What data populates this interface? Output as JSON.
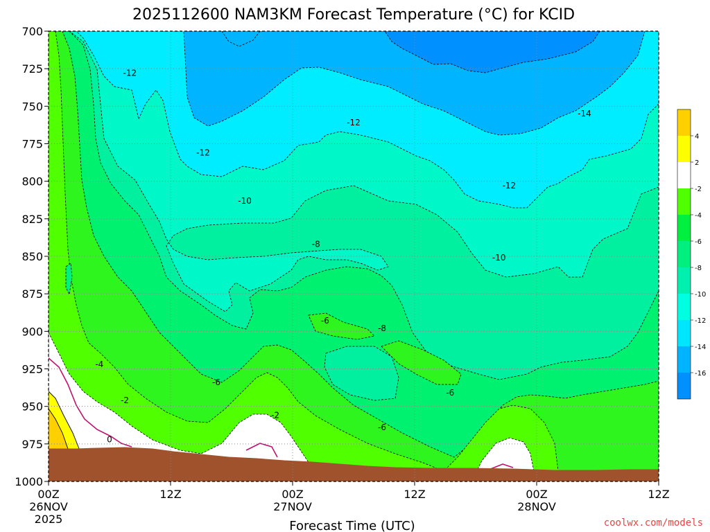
{
  "chart_data": {
    "type": "contour",
    "title": "2025112600 NAM3KM Forecast Temperature (°C) for KCID",
    "xlabel": "Forecast Time (UTC)",
    "credit": "coolwx.com/models",
    "x_ticks": [
      {
        "label": "00Z",
        "sub": "26NOV",
        "sub2": "2025",
        "hour": 0
      },
      {
        "label": "12Z",
        "sub": "",
        "sub2": "",
        "hour": 12
      },
      {
        "label": "00Z",
        "sub": "27NOV",
        "sub2": "",
        "hour": 24
      },
      {
        "label": "12Z",
        "sub": "",
        "sub2": "",
        "hour": 36
      },
      {
        "label": "00Z",
        "sub": "28NOV",
        "sub2": "",
        "hour": 48
      },
      {
        "label": "12Z",
        "sub": "",
        "sub2": "",
        "hour": 60
      }
    ],
    "x_range": [
      0,
      60
    ],
    "y_ticks": [
      700,
      725,
      750,
      775,
      800,
      825,
      850,
      875,
      900,
      925,
      950,
      975,
      1000
    ],
    "y_range": [
      700,
      1000
    ],
    "colorbar": {
      "labels": [
        "4",
        "2",
        "-2",
        "-4",
        "-6",
        "-8",
        "-10",
        "-12",
        "-14",
        "-16"
      ],
      "colors": [
        "#ffd000",
        "#ffff00",
        "#ffffff",
        "#50ff00",
        "#00f040",
        "#00f080",
        "#00f0b0",
        "#00ffe0",
        "#00e6ff",
        "#00b4ff",
        "#0090ff"
      ]
    },
    "contour_labels": [
      {
        "text": "-12",
        "hour": 8.0,
        "p": 728
      },
      {
        "text": "-12",
        "hour": 15.2,
        "p": 781
      },
      {
        "text": "-12",
        "hour": 30.0,
        "p": 761
      },
      {
        "text": "-12",
        "hour": 45.3,
        "p": 803
      },
      {
        "text": "-14",
        "hour": 52.7,
        "p": 755
      },
      {
        "text": "-10",
        "hour": 19.3,
        "p": 813
      },
      {
        "text": "-10",
        "hour": 44.3,
        "p": 851
      },
      {
        "text": "-8",
        "hour": 26.3,
        "p": 842
      },
      {
        "text": "-8",
        "hour": 32.8,
        "p": 898
      },
      {
        "text": "-6",
        "hour": 27.2,
        "p": 893
      },
      {
        "text": "-6",
        "hour": 16.5,
        "p": 934
      },
      {
        "text": "-6",
        "hour": 39.5,
        "p": 941
      },
      {
        "text": "-6",
        "hour": 32.8,
        "p": 964
      },
      {
        "text": "-4",
        "hour": 5.0,
        "p": 922
      },
      {
        "text": "-2",
        "hour": 7.5,
        "p": 946
      },
      {
        "text": "-2",
        "hour": 22.3,
        "p": 956
      },
      {
        "text": "0",
        "hour": 6.0,
        "p": 972
      }
    ]
  }
}
